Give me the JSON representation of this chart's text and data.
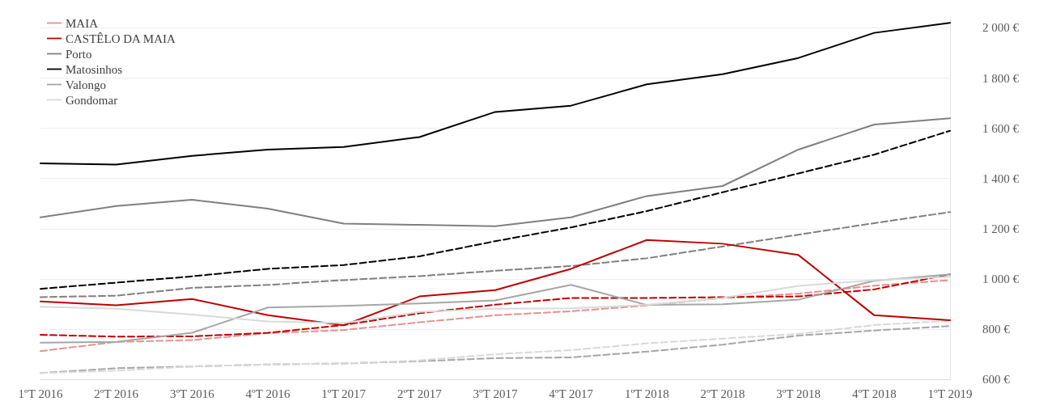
{
  "chart_data": {
    "type": "line",
    "categories": [
      "1ºT 2016",
      "2ºT 2016",
      "3ºT 2016",
      "4ºT 2016",
      "1ºT 2017",
      "2ºT 2017",
      "3ºT 2017",
      "4ºT 2017",
      "1ºT 2018",
      "2ºT 2018",
      "3ºT 2018",
      "4ºT 2018",
      "1ºT 2019"
    ],
    "series": [
      {
        "name": "MAIA",
        "color": "#e8908f",
        "line_style": "dashed",
        "values": [
          712,
          749,
          756,
          784,
          796,
          827,
          855,
          871,
          894,
          924,
          941,
          973,
          995
        ]
      },
      {
        "name": "CASTÊLO DA MAIA",
        "color": "#c00000",
        "line_style": "solid",
        "values": [
          910,
          895,
          920,
          855,
          815,
          930,
          955,
          1040,
          1155,
          1140,
          1095,
          855,
          835
        ]
      },
      {
        "name": "Porto",
        "color": "#7f7f7f",
        "line_style": "solid",
        "values": [
          1245,
          1290,
          1315,
          1280,
          1220,
          1215,
          1210,
          1245,
          1330,
          1370,
          1515,
          1615,
          1640
        ]
      },
      {
        "name": "Matosinhos",
        "color": "#000000",
        "line_style": "solid",
        "values": [
          1460,
          1455,
          1490,
          1515,
          1525,
          1565,
          1665,
          1690,
          1775,
          1815,
          1880,
          1980,
          2020
        ]
      },
      {
        "name": "Valongo",
        "color": "#a6a6a6",
        "line_style": "solid",
        "values": [
          746,
          749,
          785,
          886,
          892,
          902,
          914,
          976,
          896,
          899,
          917,
          992,
          1018
        ]
      },
      {
        "name": "Gondomar",
        "color": "#d9d9d9",
        "line_style": "solid",
        "values": [
          889,
          881,
          858,
          830,
          824,
          868,
          881,
          883,
          896,
          924,
          972,
          995,
          1008
        ]
      },
      {
        "color": "#c00000",
        "line_style": "dashed",
        "values": [
          777,
          770,
          771,
          785,
          816,
          863,
          897,
          924,
          924,
          927,
          930,
          958,
          1018
        ]
      },
      {
        "color": "#7f7f7f",
        "line_style": "dashed",
        "values": [
          927,
          933,
          964,
          976,
          995,
          1011,
          1032,
          1051,
          1082,
          1129,
          1176,
          1222,
          1266
        ]
      },
      {
        "color": "#000000",
        "line_style": "dashed",
        "values": [
          960,
          985,
          1010,
          1040,
          1055,
          1090,
          1150,
          1205,
          1270,
          1345,
          1420,
          1495,
          1590
        ]
      },
      {
        "color": "#a6a6a6",
        "line_style": "dashed",
        "values": [
          625,
          644,
          651,
          659,
          663,
          672,
          684,
          687,
          710,
          738,
          774,
          794,
          812
        ]
      },
      {
        "color": "#d9d9d9",
        "line_style": "dashed",
        "values": [
          625,
          634,
          651,
          659,
          663,
          675,
          700,
          716,
          743,
          762,
          781,
          816,
          833
        ]
      }
    ],
    "ylim": [
      600,
      2040
    ],
    "yticks": [
      {
        "value": 600,
        "label": "600 €"
      },
      {
        "value": 800,
        "label": "800 €"
      },
      {
        "value": 1000,
        "label": "1 000 €"
      },
      {
        "value": 1200,
        "label": "1 200 €"
      },
      {
        "value": 1400,
        "label": "1 400 €"
      },
      {
        "value": 1600,
        "label": "1 600 €"
      },
      {
        "value": 1800,
        "label": "1 800 €"
      },
      {
        "value": 2000,
        "label": "2 000 €"
      }
    ],
    "grid": "y",
    "legend": "top left",
    "marker": "none"
  }
}
